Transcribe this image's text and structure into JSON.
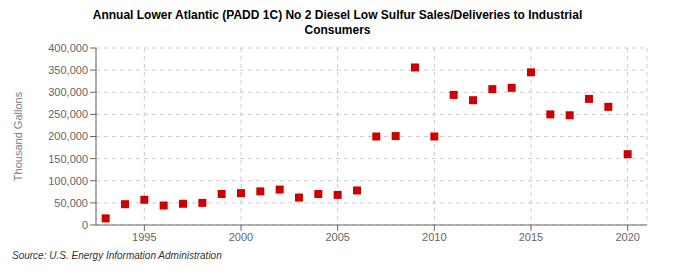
{
  "chart_data": {
    "type": "scatter",
    "title": "Annual Lower Atlantic (PADD 1C) No 2 Diesel Low Sulfur Sales/Deliveries to Industrial\nConsumers",
    "y_label": "Thousand Gallons",
    "annotation": "Source: U.S. Energy Information Administration",
    "x": [
      1993,
      1994,
      1995,
      1996,
      1997,
      1998,
      1999,
      2000,
      2001,
      2002,
      2003,
      2004,
      2005,
      2006,
      2007,
      2008,
      2009,
      2010,
      2011,
      2012,
      2013,
      2014,
      2015,
      2016,
      2017,
      2018,
      2019,
      2020
    ],
    "values": [
      15000,
      47000,
      57000,
      44000,
      48000,
      50000,
      70000,
      72000,
      76000,
      80000,
      62000,
      70000,
      68000,
      78000,
      200000,
      201000,
      356000,
      200000,
      294000,
      282000,
      307000,
      310000,
      345000,
      250000,
      248000,
      285000,
      267000,
      160000
    ],
    "color": "#cc0000",
    "marker": "square",
    "xlim": [
      1992.5,
      2021
    ],
    "xticks": [
      1995,
      2000,
      2005,
      2010,
      2015,
      2020
    ],
    "ylim": [
      0,
      400000
    ],
    "yticks": [
      0,
      {
        "value": 50000,
        "label": "50,000"
      },
      {
        "value": 100000,
        "label": "100,000"
      },
      {
        "value": 150000,
        "label": "150,000"
      },
      {
        "value": 200000,
        "label": "200,000"
      },
      {
        "value": 250000,
        "label": "250,000"
      },
      {
        "value": 300000,
        "label": "300,000"
      },
      {
        "value": 350000,
        "label": "350,000"
      },
      {
        "value": 400000,
        "label": "400,000"
      }
    ],
    "grid": true
  }
}
